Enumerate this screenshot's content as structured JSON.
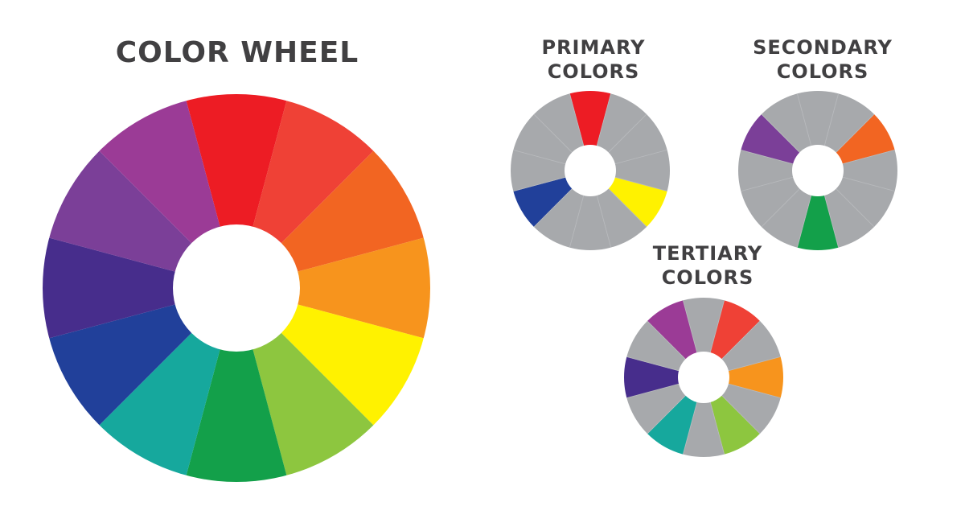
{
  "titles": {
    "main": "COLOR WHEEL",
    "primary": [
      "PRIMARY",
      "COLORS"
    ],
    "secondary": [
      "SECONDARY",
      "COLORS"
    ],
    "tertiary": [
      "TERTIARY",
      "COLORS"
    ]
  },
  "neutral_color": "#a7a9ac",
  "segments": [
    {
      "name": "red",
      "color": "#ed1c24",
      "group": "primary"
    },
    {
      "name": "red-orange",
      "color": "#ef4136",
      "group": "tertiary"
    },
    {
      "name": "orange",
      "color": "#f26522",
      "group": "secondary"
    },
    {
      "name": "yellow-orange",
      "color": "#f7941d",
      "group": "tertiary"
    },
    {
      "name": "yellow",
      "color": "#fff200",
      "group": "primary"
    },
    {
      "name": "yellow-green",
      "color": "#8dc63f",
      "group": "tertiary"
    },
    {
      "name": "green",
      "color": "#13a04a",
      "group": "secondary"
    },
    {
      "name": "blue-green",
      "color": "#16a89d",
      "group": "tertiary"
    },
    {
      "name": "blue",
      "color": "#21409a",
      "group": "primary"
    },
    {
      "name": "blue-violet",
      "color": "#472d8c",
      "group": "tertiary"
    },
    {
      "name": "violet",
      "color": "#7b3f98",
      "group": "secondary"
    },
    {
      "name": "red-violet",
      "color": "#9b3b96",
      "group": "tertiary"
    }
  ]
}
